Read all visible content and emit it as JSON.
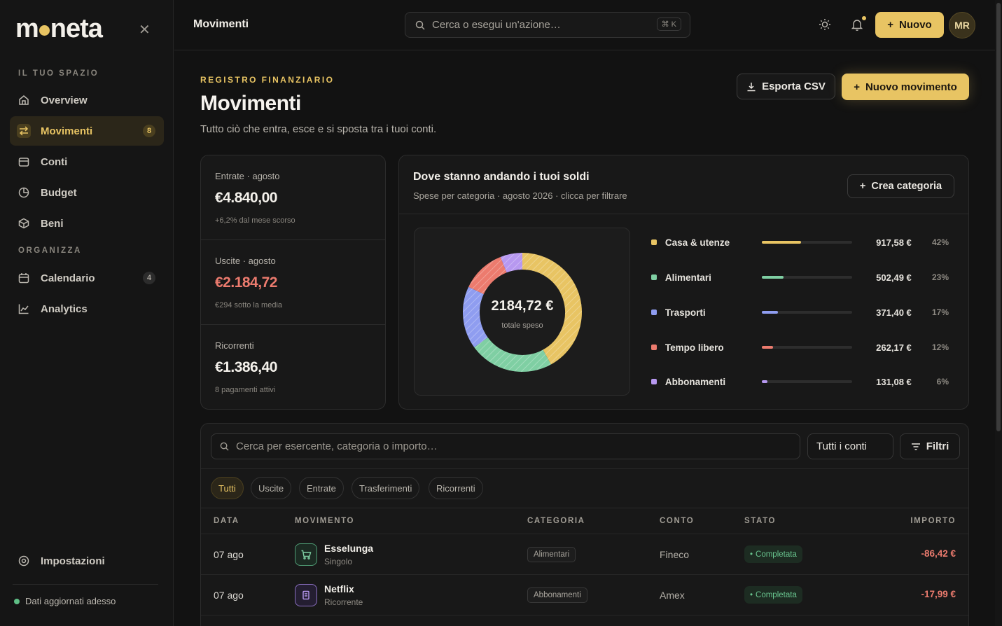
{
  "sidebar": {
    "logo": "moneta",
    "sections": {
      "space": "IL TUO SPAZIO",
      "organize": "ORGANIZZA"
    },
    "items": [
      {
        "label": "Overview",
        "icon": "home-icon"
      },
      {
        "label": "Movimenti",
        "icon": "arrows-icon",
        "badge": "8",
        "active": true
      },
      {
        "label": "Conti",
        "icon": "wallet-icon"
      },
      {
        "label": "Budget",
        "icon": "pie-icon"
      },
      {
        "label": "Beni",
        "icon": "box-icon"
      },
      {
        "label": "Calendario",
        "icon": "calendar-icon",
        "badge": "4"
      },
      {
        "label": "Analytics",
        "icon": "chart-icon"
      }
    ],
    "settings": "Impostazioni",
    "status": "Dati aggiornati adesso"
  },
  "topbar": {
    "title": "Movimenti",
    "search_placeholder": "Cerca o esegui un'azione…",
    "shortcut": "⌘ K",
    "new_label": "Nuovo",
    "avatar": "MR"
  },
  "header": {
    "eyebrow": "REGISTRO FINANZIARIO",
    "title": "Movimenti",
    "subtitle": "Tutto ciò che entra, esce e si sposta tra i tuoi conti.",
    "export_label": "Esporta CSV",
    "new_movement_label": "Nuovo movimento"
  },
  "stats": [
    {
      "label": "Entrate · agosto",
      "value": "€4.840,00",
      "note": "+6,2% dal mese scorso"
    },
    {
      "label": "Uscite · agosto",
      "value": "€2.184,72",
      "note": "€294 sotto la media"
    },
    {
      "label": "Ricorrenti",
      "value": "€1.386,40",
      "note": "8 pagamenti attivi"
    }
  ],
  "spending": {
    "title": "Dove stanno andando i tuoi soldi",
    "subtitle": "Spese per categoria · agosto 2026 · clicca per filtrare",
    "create_label": "Crea categoria",
    "total": "2184,72 €",
    "total_label": "totale speso"
  },
  "chart_data": {
    "type": "pie",
    "categories": [
      "Casa & utenze",
      "Alimentari",
      "Trasporti",
      "Tempo libero",
      "Abbonamenti"
    ],
    "values": [
      917.58,
      502.49,
      371.4,
      262.17,
      131.08
    ],
    "amount_labels": [
      "917,58 €",
      "502,49 €",
      "371,40 €",
      "262,17 €",
      "131,08 €"
    ],
    "percent_labels": [
      "42%",
      "23%",
      "17%",
      "12%",
      "6%"
    ],
    "colors": [
      "#e8c463",
      "#7fcfa3",
      "#8f9df0",
      "#ec7b6e",
      "#b798f0"
    ]
  },
  "table": {
    "search_placeholder": "Cerca per esercente, categoria o importo…",
    "account_filter": "Tutti i conti",
    "filters_label": "Filtri",
    "tabs": [
      "Tutti",
      "Uscite",
      "Entrate",
      "Trasferimenti",
      "Ricorrenti"
    ],
    "columns": [
      "DATA",
      "MOVIMENTO",
      "CATEGORIA",
      "CONTO",
      "STATO",
      "IMPORTO"
    ],
    "rows": [
      {
        "date": "07 ago",
        "merchant": "Esselunga",
        "type": "Singolo",
        "category": "Alimentari",
        "account": "Fineco",
        "status": "Completata",
        "amount": "-86,42 €",
        "icon": "cart-icon",
        "icon_color": "#7fcfa3"
      },
      {
        "date": "07 ago",
        "merchant": "Netflix",
        "type": "Ricorrente",
        "category": "Abbonamenti",
        "account": "Amex",
        "status": "Completata",
        "amount": "-17,99 €",
        "icon": "receipt-icon",
        "icon_color": "#b798f0"
      }
    ]
  }
}
